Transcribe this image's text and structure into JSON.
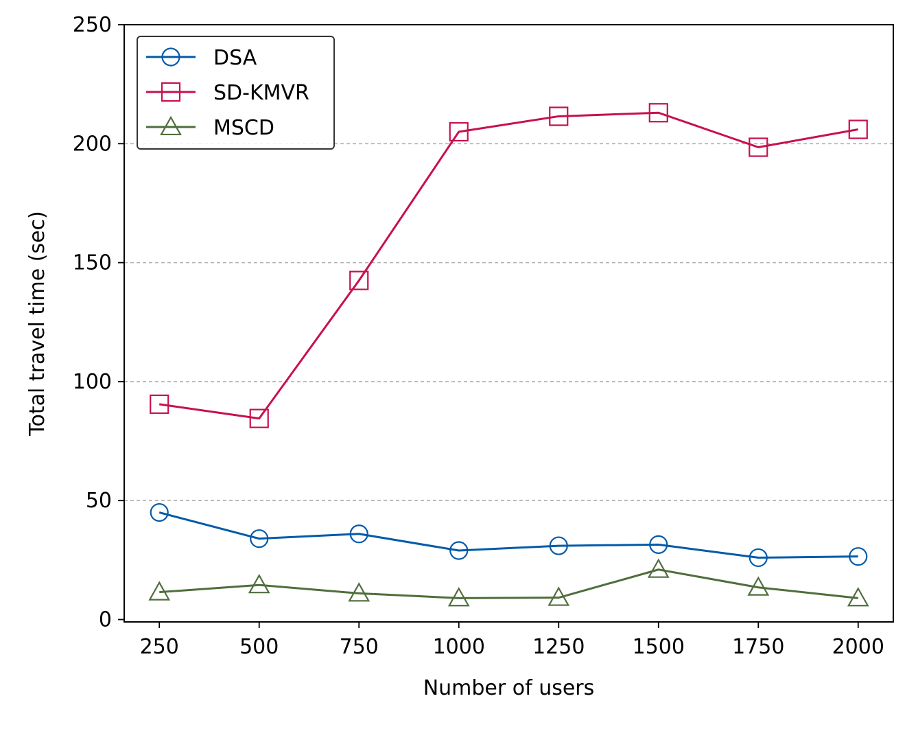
{
  "chart_data": {
    "type": "line",
    "xlabel": "Number of users",
    "ylabel": "Total travel time (sec)",
    "x": [
      250,
      500,
      750,
      1000,
      1250,
      1500,
      1750,
      2000
    ],
    "xticks": [
      250,
      500,
      750,
      1000,
      1250,
      1500,
      1750,
      2000
    ],
    "yticks": [
      0,
      50,
      100,
      150,
      200,
      250
    ],
    "xlim": [
      162,
      2088
    ],
    "ylim": [
      -1,
      250
    ],
    "grid": "horizontal dashed at 50, 100, 150, 200",
    "legend_position": "top-left",
    "series": [
      {
        "name": "DSA",
        "color": "#005aaa",
        "marker": "circle",
        "values": [
          45,
          34,
          36,
          29,
          31,
          31.5,
          26,
          26.5
        ]
      },
      {
        "name": "SD-KMVR",
        "color": "#c8104e",
        "marker": "square",
        "values": [
          90.5,
          84.5,
          142.5,
          205,
          211.5,
          213,
          198.5,
          206
        ]
      },
      {
        "name": "MSCD",
        "color": "#4f6e3c",
        "marker": "triangle",
        "values": [
          11.5,
          14.5,
          11,
          9,
          9.2,
          21,
          13.5,
          9
        ]
      }
    ]
  }
}
